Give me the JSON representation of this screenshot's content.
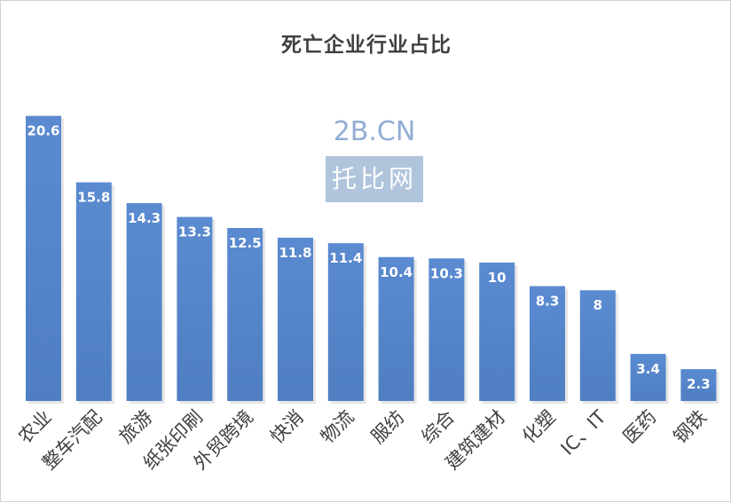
{
  "chart_data": {
    "type": "bar",
    "title": "死亡企业行业占比",
    "xlabel": "",
    "ylabel": "",
    "ylim": [
      0,
      22
    ],
    "grid": false,
    "legend": "none",
    "bar_color": "#4f7fc2",
    "categories": [
      "农业",
      "整车汽配",
      "旅游",
      "纸张印刷",
      "外贸跨境",
      "快消",
      "物流",
      "服纺",
      "综合",
      "建筑建材",
      "化塑",
      "IC、IT",
      "医药",
      "钢铁"
    ],
    "values": [
      20.6,
      15.8,
      14.3,
      13.3,
      12.5,
      11.8,
      11.4,
      10.4,
      10.3,
      10,
      8.3,
      8,
      3.4,
      2.3
    ],
    "data_labels": [
      "20.6",
      "15.8",
      "14.3",
      "13.3",
      "12.5",
      "11.8",
      "11.4",
      "10.4",
      "10.3",
      "10",
      "8.3",
      "8",
      "3.4",
      "2.3"
    ]
  },
  "watermark": {
    "line1": "2B.CN",
    "line2": "托比网"
  }
}
